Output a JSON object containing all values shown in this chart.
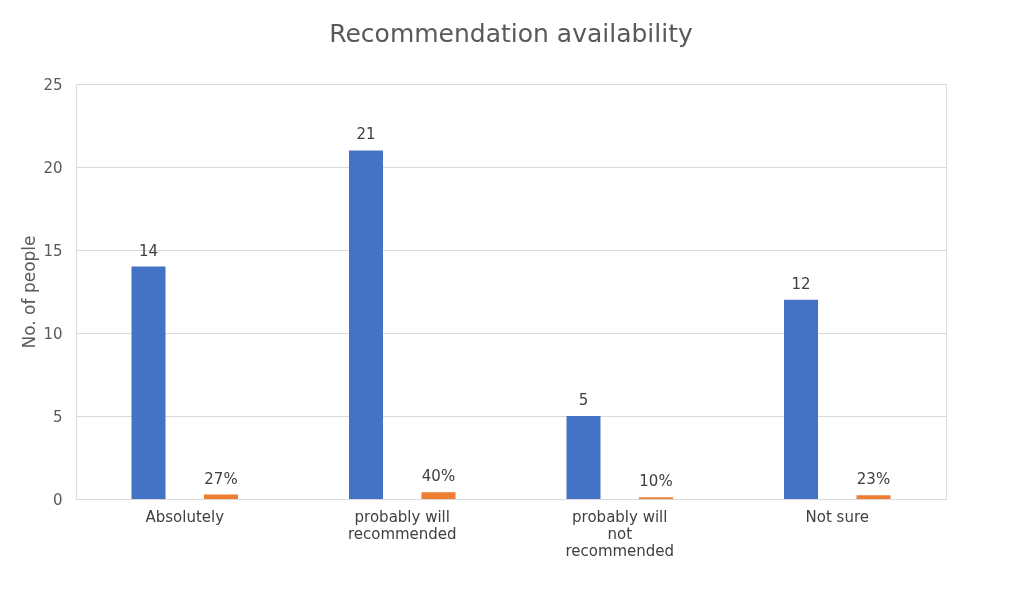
{
  "chart_data": {
    "type": "bar",
    "title": "Recommendation availability",
    "ylabel": "No. of people",
    "categories": [
      "Absolutely",
      "probably will recommended",
      "probably will not recommended",
      "Not sure"
    ],
    "series": [
      {
        "color": "#4472c4",
        "values": [
          14,
          21,
          5,
          12
        ],
        "value_labels": [
          "14",
          "21",
          "5",
          "12"
        ]
      },
      {
        "color": "#ed7d31",
        "values": [
          0.27,
          0.4,
          0.1,
          0.23
        ],
        "value_labels": [
          "27%",
          "40%",
          "10%",
          "23%"
        ]
      }
    ],
    "ylim": [
      0,
      25
    ],
    "yticks": [
      0,
      5,
      10,
      15,
      20,
      25
    ],
    "grid": "y",
    "legend": false
  }
}
